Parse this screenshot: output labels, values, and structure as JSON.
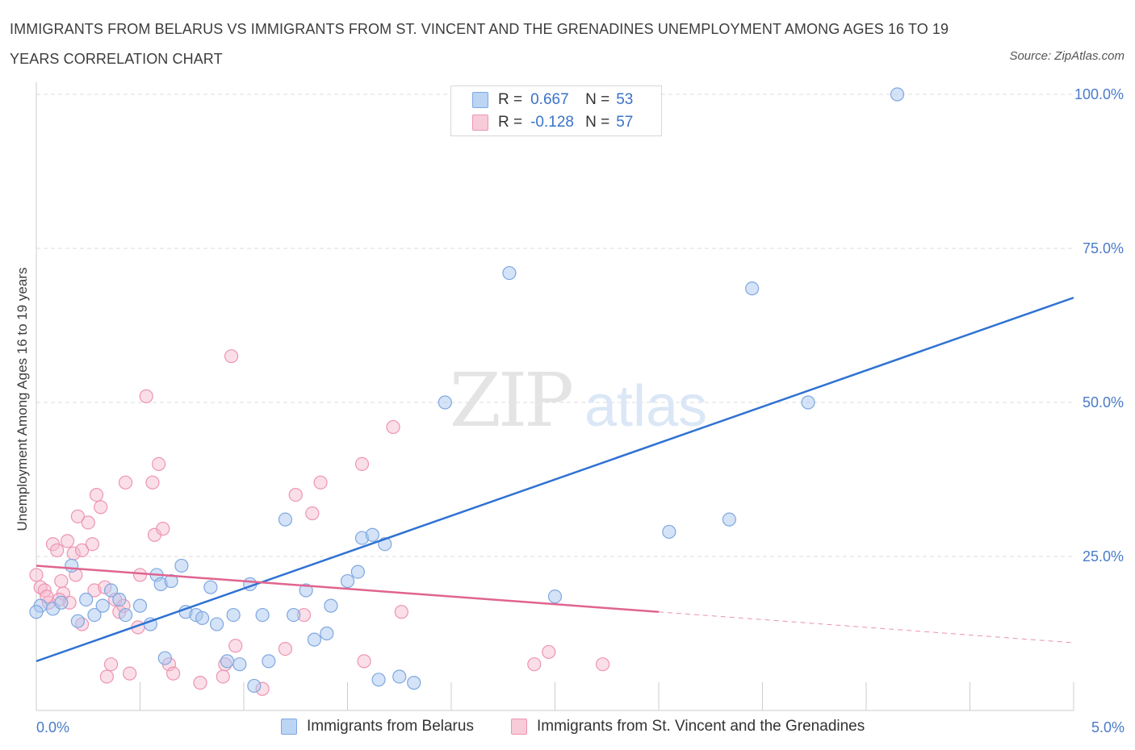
{
  "header": {
    "title": "IMMIGRANTS FROM BELARUS VS IMMIGRANTS FROM ST. VINCENT AND THE GRENADINES UNEMPLOYMENT AMONG AGES 16 TO 19 YEARS CORRELATION CHART",
    "source": "Source: ZipAtlas.com"
  },
  "watermark": {
    "zip": "ZIP",
    "atlas": "atlas"
  },
  "legend": {
    "rows": [
      {
        "r_label": "R =",
        "r_value": "0.667",
        "n_label": "N =",
        "n_value": "53"
      },
      {
        "r_label": "R =",
        "r_value": "-0.128",
        "n_label": "N =",
        "n_value": "57"
      }
    ]
  },
  "colors": {
    "blue_fill": "#a9c8f0",
    "blue_stroke": "#7fa7e0",
    "blue_line": "#2f72d2",
    "pink_fill": "#f5b8cb",
    "pink_stroke": "#ee94b2",
    "pink_line": "#e0648f"
  },
  "chart_data": {
    "type": "scatter",
    "title": "IMMIGRANTS FROM BELARUS VS IMMIGRANTS FROM ST. VINCENT AND THE GRENADINES UNEMPLOYMENT AMONG AGES 16 TO 19 YEARS CORRELATION CHART",
    "xlabel": "",
    "ylabel": "Unemployment Among Ages 16 to 19 years",
    "xlim": [
      0,
      5
    ],
    "ylim": [
      0,
      100
    ],
    "x_tick_labels": [
      "0.0%",
      "5.0%"
    ],
    "y_tick_labels": [
      "25.0%",
      "50.0%",
      "75.0%",
      "100.0%"
    ],
    "y_ticks": [
      25,
      50,
      75,
      100
    ],
    "grid": true,
    "legend_position": "top-center",
    "series": [
      {
        "name": "Immigrants from Belarus",
        "color": "#a9c8f0",
        "trend": {
          "x": [
            0,
            5
          ],
          "y": [
            8,
            67
          ]
        },
        "points": [
          {
            "x": 0.02,
            "y": 17
          },
          {
            "x": 0.08,
            "y": 16.5
          },
          {
            "x": 0.12,
            "y": 17.5
          },
          {
            "x": 0.17,
            "y": 23.5
          },
          {
            "x": 0.2,
            "y": 14.5
          },
          {
            "x": 0.24,
            "y": 18
          },
          {
            "x": 0.28,
            "y": 15.5
          },
          {
            "x": 0.32,
            "y": 17
          },
          {
            "x": 0.36,
            "y": 19.5
          },
          {
            "x": 0.4,
            "y": 18
          },
          {
            "x": 0.43,
            "y": 15.5
          },
          {
            "x": 0.5,
            "y": 17
          },
          {
            "x": 0.55,
            "y": 14
          },
          {
            "x": 0.58,
            "y": 22
          },
          {
            "x": 0.6,
            "y": 20.5
          },
          {
            "x": 0.62,
            "y": 8.5
          },
          {
            "x": 0.65,
            "y": 21
          },
          {
            "x": 0.7,
            "y": 23.5
          },
          {
            "x": 0.72,
            "y": 16
          },
          {
            "x": 0.77,
            "y": 15.5
          },
          {
            "x": 0.8,
            "y": 15
          },
          {
            "x": 0.84,
            "y": 20
          },
          {
            "x": 0.87,
            "y": 14
          },
          {
            "x": 0.92,
            "y": 8
          },
          {
            "x": 0.95,
            "y": 15.5
          },
          {
            "x": 0.98,
            "y": 7.5
          },
          {
            "x": 1.03,
            "y": 20.5
          },
          {
            "x": 1.05,
            "y": 4
          },
          {
            "x": 1.09,
            "y": 15.5
          },
          {
            "x": 1.12,
            "y": 8
          },
          {
            "x": 1.2,
            "y": 31
          },
          {
            "x": 1.24,
            "y": 15.5
          },
          {
            "x": 1.3,
            "y": 19.5
          },
          {
            "x": 1.34,
            "y": 11.5
          },
          {
            "x": 1.4,
            "y": 12.5
          },
          {
            "x": 1.42,
            "y": 17
          },
          {
            "x": 1.5,
            "y": 21
          },
          {
            "x": 1.55,
            "y": 22.5
          },
          {
            "x": 1.57,
            "y": 28
          },
          {
            "x": 1.62,
            "y": 28.5
          },
          {
            "x": 1.65,
            "y": 5
          },
          {
            "x": 1.68,
            "y": 27
          },
          {
            "x": 1.75,
            "y": 5.5
          },
          {
            "x": 1.82,
            "y": 4.5
          },
          {
            "x": 1.97,
            "y": 50
          },
          {
            "x": 2.28,
            "y": 71
          },
          {
            "x": 2.5,
            "y": 18.5
          },
          {
            "x": 3.05,
            "y": 29
          },
          {
            "x": 3.34,
            "y": 31
          },
          {
            "x": 3.45,
            "y": 68.5
          },
          {
            "x": 3.72,
            "y": 50
          },
          {
            "x": 4.15,
            "y": 100
          },
          {
            "x": 0.0,
            "y": 16
          }
        ]
      },
      {
        "name": "Immigrants from St. Vincent and the Grenadines",
        "color": "#f5b8cb",
        "trend": {
          "x": [
            0,
            3.0
          ],
          "y": [
            23.5,
            16
          ]
        },
        "trend_dashed": {
          "x": [
            3.0,
            5
          ],
          "y": [
            16,
            11
          ]
        },
        "points": [
          {
            "x": 0.0,
            "y": 22
          },
          {
            "x": 0.02,
            "y": 20
          },
          {
            "x": 0.04,
            "y": 19.5
          },
          {
            "x": 0.06,
            "y": 17.5
          },
          {
            "x": 0.08,
            "y": 27
          },
          {
            "x": 0.1,
            "y": 26
          },
          {
            "x": 0.12,
            "y": 21
          },
          {
            "x": 0.13,
            "y": 19
          },
          {
            "x": 0.15,
            "y": 27.5
          },
          {
            "x": 0.16,
            "y": 17.5
          },
          {
            "x": 0.18,
            "y": 25.5
          },
          {
            "x": 0.19,
            "y": 22
          },
          {
            "x": 0.2,
            "y": 31.5
          },
          {
            "x": 0.22,
            "y": 26
          },
          {
            "x": 0.22,
            "y": 14
          },
          {
            "x": 0.25,
            "y": 30.5
          },
          {
            "x": 0.27,
            "y": 27
          },
          {
            "x": 0.28,
            "y": 19.5
          },
          {
            "x": 0.29,
            "y": 35
          },
          {
            "x": 0.31,
            "y": 33
          },
          {
            "x": 0.33,
            "y": 20
          },
          {
            "x": 0.34,
            "y": 5.5
          },
          {
            "x": 0.36,
            "y": 7.5
          },
          {
            "x": 0.38,
            "y": 18
          },
          {
            "x": 0.4,
            "y": 16
          },
          {
            "x": 0.42,
            "y": 17
          },
          {
            "x": 0.43,
            "y": 37
          },
          {
            "x": 0.45,
            "y": 6
          },
          {
            "x": 0.49,
            "y": 13.5
          },
          {
            "x": 0.5,
            "y": 22
          },
          {
            "x": 0.53,
            "y": 51
          },
          {
            "x": 0.56,
            "y": 37
          },
          {
            "x": 0.57,
            "y": 28.5
          },
          {
            "x": 0.59,
            "y": 40
          },
          {
            "x": 0.61,
            "y": 29.5
          },
          {
            "x": 0.64,
            "y": 7.5
          },
          {
            "x": 0.66,
            "y": 6
          },
          {
            "x": 0.79,
            "y": 4.5
          },
          {
            "x": 0.9,
            "y": 5.5
          },
          {
            "x": 0.91,
            "y": 7.5
          },
          {
            "x": 0.94,
            "y": 57.5
          },
          {
            "x": 0.96,
            "y": 10.5
          },
          {
            "x": 1.09,
            "y": 3.5
          },
          {
            "x": 1.2,
            "y": 10
          },
          {
            "x": 1.25,
            "y": 35
          },
          {
            "x": 1.29,
            "y": 15.5
          },
          {
            "x": 1.33,
            "y": 32
          },
          {
            "x": 1.37,
            "y": 37
          },
          {
            "x": 1.57,
            "y": 40
          },
          {
            "x": 1.58,
            "y": 8
          },
          {
            "x": 1.72,
            "y": 46
          },
          {
            "x": 1.76,
            "y": 16
          },
          {
            "x": 2.4,
            "y": 7.5
          },
          {
            "x": 2.47,
            "y": 9.5
          },
          {
            "x": 2.73,
            "y": 7.5
          },
          {
            "x": 0.05,
            "y": 18.5
          },
          {
            "x": 0.11,
            "y": 18
          }
        ]
      }
    ]
  },
  "bottom_legend": {
    "items": [
      {
        "label": "Immigrants from Belarus"
      },
      {
        "label": "Immigrants from St. Vincent and the Grenadines"
      }
    ]
  }
}
